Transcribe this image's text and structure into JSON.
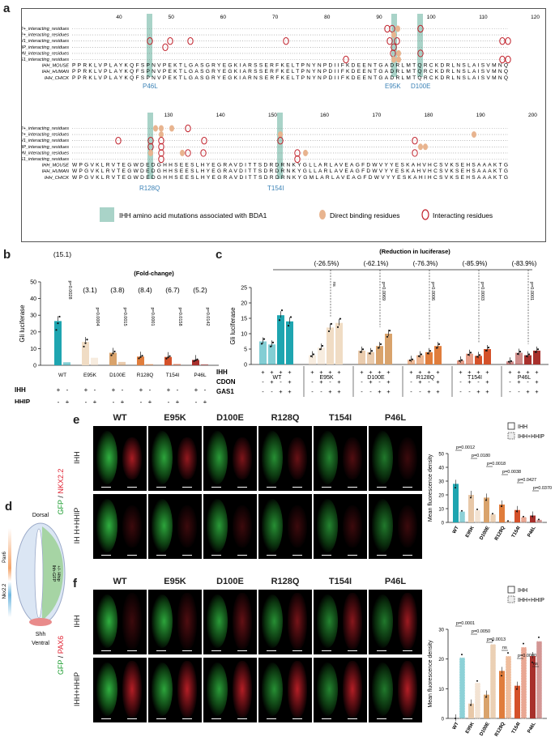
{
  "panels": {
    "a": "a",
    "b": "b",
    "c": "c",
    "d": "d",
    "e": "e",
    "f": "f"
  },
  "a": {
    "top_ticks": [
      "40",
      "50",
      "60",
      "70",
      "80",
      "90",
      "100",
      "110",
      "120"
    ],
    "bottom_ticks": [
      "130",
      "140",
      "150",
      "160",
      "170",
      "180",
      "190",
      "200"
    ],
    "row_labels": [
      "Ca2+_interacting_residues",
      "Zn2+_interacting_residues",
      "PTCH1_interacting_residues",
      "HHIP_interacting_residues",
      "CDON_interacting_residues",
      "GAS1_interacting_residues",
      "IHH_MOUSE",
      "IHH_HUMAN",
      "IHH_CHICK"
    ],
    "seq_top": [
      "PPRKLVPLAYKQFSPNVPEKTLGASGRYEGKIARSSERFKELTPNYNPDIIFKDEENTGADRLMTQRCKDRLNSLAISVMNQ",
      "PPRKLVPLAYKQFSPNVPEKTLGASGRYEGKIARSSERFKELTPNYNPDIIFKDEENTGADRLMTQRCKDRLNSLAISVMNQ",
      "PPRKLVPLAYKQFSPNVPEKTLGASGRYEGKIARNSERFKELTPNYNPDIIFKDEENTGADRLMTQRCKDRLNSLAISVMNQ"
    ],
    "seq_bottom": [
      "WPGVKLRVTEGWDEDGHHSEESLHYEGRAVDITTSDRDRNKYGLLARLAVEAGFDWVYYESKAHVHCSVKSEHSAAAKTG",
      "WPGVKLRVTEGWDEDGHHSEESLHYEGRAVDITTSDRDRNKYGLLARLAVEAGFDWVYYESKAHVHCSVKSEHSAAAKTG",
      "WPGVKLRVTEGWDEDGHHSEESLHYEGRAVDITTSDRDRNKYGMLARLAVEAGFDWVYYESKAHIHCSVKSEHSAAAKTG"
    ],
    "mutations_top": [
      "P46L",
      "E95K",
      "D100E"
    ],
    "mutations_bottom": [
      "R128Q",
      "T154I"
    ],
    "legend": [
      "IHH amino acid mutations associated with BDA1",
      "Direct binding residues",
      "Interacting residues"
    ],
    "colors": {
      "mutation": "#a9d3c8",
      "binding": "#e8b48f",
      "interacting": "#c0202a"
    }
  },
  "chart_data": [
    {
      "id": "b",
      "type": "bar",
      "title": "(Fold-change)",
      "ylabel": "Gli luciferase",
      "ylim": [
        0,
        50
      ],
      "yticks": [
        "0",
        "10",
        "20",
        "30",
        "40",
        "50"
      ],
      "categories": [
        "WT",
        "E95K",
        "D100E",
        "R128Q",
        "T154I",
        "P46L"
      ],
      "series": [
        {
          "name": "IHH",
          "values": [
            26.5,
            14.0,
            7.5,
            5.2,
            5.0,
            3.2
          ]
        },
        {
          "name": "IHH+HHIP",
          "values": [
            1.8,
            4.5,
            2.0,
            0.7,
            0.8,
            0.6
          ]
        }
      ],
      "fold_change": [
        "(15.1)",
        "(3.1)",
        "(3.8)",
        "(8.4)",
        "(6.7)",
        "(5.2)"
      ],
      "pvalues": [
        "p=0.0028",
        "p=0.0004",
        "p=0.0015",
        "p=0.0001",
        "p=0.0158",
        "p=0.0142"
      ],
      "row_labels": [
        "IHH",
        "HHIP"
      ],
      "signs": [
        "+",
        "-",
        "+"
      ],
      "colors": [
        "#1ea5b0",
        "#f0dcc4",
        "#d9a36c",
        "#e07d3c",
        "#d4512a",
        "#a8302c"
      ]
    },
    {
      "id": "c",
      "type": "bar",
      "title": "(Reduction in luciferase)",
      "ylabel": "Gli luciferase",
      "ylim": [
        0,
        25
      ],
      "yticks": [
        "0",
        "5",
        "10",
        "15",
        "20",
        "25"
      ],
      "categories": [
        "WT",
        "E95K",
        "D100E",
        "R128Q",
        "T154I",
        "P46L"
      ],
      "conditions": [
        {
          "ihh": "+",
          "cdon": "-",
          "gas1": "-"
        },
        {
          "ihh": "+",
          "cdon": "+",
          "gas1": "-"
        },
        {
          "ihh": "+",
          "cdon": "-",
          "gas1": "+"
        },
        {
          "ihh": "+",
          "cdon": "+",
          "gas1": "+"
        }
      ],
      "values": [
        [
          7.5,
          6.5,
          16.0,
          14.0
        ],
        [
          3.0,
          5.5,
          12.0,
          13.5
        ],
        [
          4.5,
          4.0,
          6.0,
          10.0
        ],
        [
          1.5,
          3.0,
          4.0,
          6.0
        ],
        [
          1.3,
          3.5,
          2.8,
          5.0
        ],
        [
          1.0,
          3.8,
          3.0,
          4.5
        ]
      ],
      "reductions": [
        "(-26.5%)",
        "(-62.1%)",
        "(-76.3%)",
        "(-85.9%)",
        "(-83.9%)"
      ],
      "pvalues": [
        "ns",
        "p=0.0069",
        "p=0.0006",
        "p=0.0003",
        "p=0.0001"
      ],
      "row_labels": [
        "IHH",
        "CDON",
        "GAS1"
      ],
      "colors": [
        "#1ea5b0",
        "#f0dcc4",
        "#d9a36c",
        "#e07d3c",
        "#d4512a",
        "#a8302c"
      ]
    },
    {
      "id": "e",
      "type": "bar",
      "ylabel": "Mean fluorescence density",
      "ylim": [
        0,
        50
      ],
      "yticks": [
        "0",
        "10",
        "20",
        "30",
        "40",
        "50"
      ],
      "categories": [
        "WT",
        "E95K",
        "D100E",
        "R128Q",
        "T154I",
        "P46L"
      ],
      "series": [
        {
          "name": "IHH",
          "values": [
            28,
            20,
            18,
            13,
            9,
            5
          ]
        },
        {
          "name": "IHH+HHIP",
          "values": [
            8,
            9,
            6,
            1,
            4,
            2
          ]
        }
      ],
      "pvalues": [
        "p=0.0012",
        "p=0.0180",
        "p=0.0018",
        "p=0.0038",
        "p=0.0427",
        "p=0.0370"
      ],
      "legend": [
        "IHH",
        "IHH+HHIP"
      ]
    },
    {
      "id": "f",
      "type": "bar",
      "ylabel": "Mean fluorescence density",
      "ylim": [
        0,
        30
      ],
      "yticks": [
        "0",
        "10",
        "20",
        "30"
      ],
      "categories": [
        "WT",
        "E95K",
        "D100E",
        "R128Q",
        "T154I",
        "P46L"
      ],
      "series": [
        {
          "name": "IHH",
          "values": [
            0,
            5,
            8,
            16,
            11,
            21
          ]
        },
        {
          "name": "IHH+HHIP",
          "values": [
            20.5,
            12,
            25,
            21,
            24,
            26
          ]
        }
      ],
      "pvalues": [
        "p=0.0001",
        "p=0.0050",
        "p=0.0013",
        "ns",
        "p=0.0080",
        "ns"
      ],
      "legend": [
        "IHH",
        "IHH+HHIP"
      ]
    }
  ],
  "e": {
    "columns": [
      "WT",
      "E95K",
      "D100E",
      "R128Q",
      "T154I",
      "P46L"
    ],
    "rows": [
      "IHH",
      "IH H+HHIP"
    ],
    "stain_gfp": "GFP",
    "stain_sep": " / ",
    "stain_other": "NKX2.2"
  },
  "f": {
    "columns": [
      "WT",
      "E95K",
      "D100E",
      "R128Q",
      "T154I",
      "P46L"
    ],
    "rows": [
      "IHH",
      "IHH+HHIP"
    ],
    "stain_gfp": "GFP",
    "stain_sep": " / ",
    "stain_other": "PAX6"
  },
  "d": {
    "dorsal": "Dorsal",
    "ventral": "Ventral",
    "pax6": "Pax6",
    "nkx22": "Nkx2.2",
    "shh": "Shh",
    "construct": "Ihh-GFP",
    "hhip": "+/- Hhip"
  }
}
